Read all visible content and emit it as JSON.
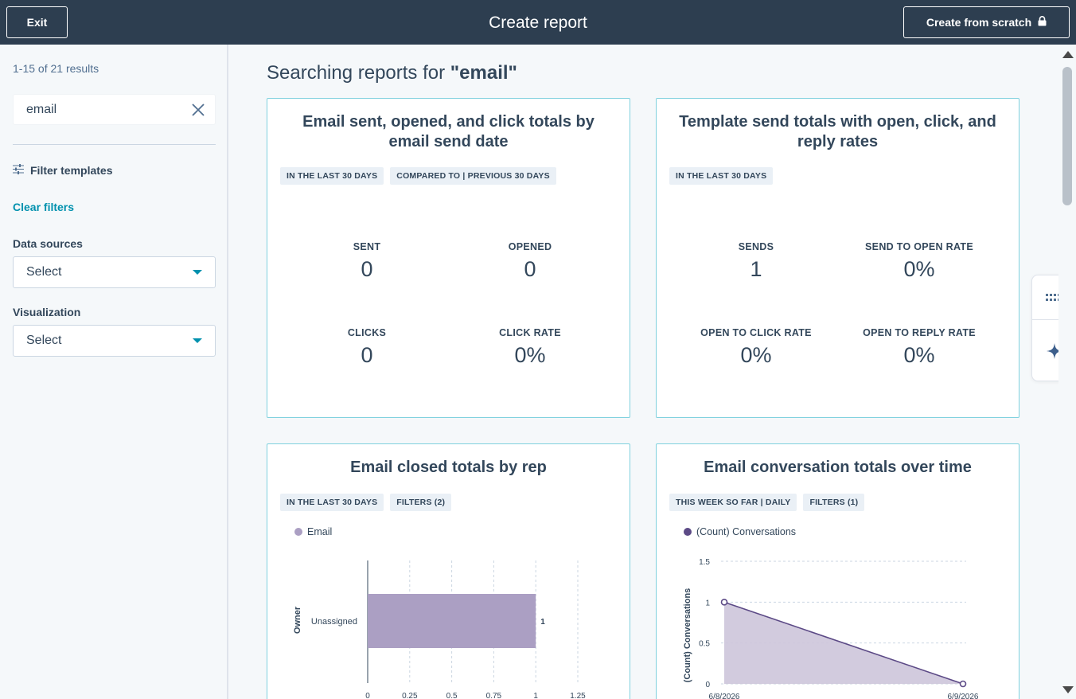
{
  "header": {
    "exit_label": "Exit",
    "title": "Create report",
    "create_scratch_label": "Create from scratch"
  },
  "sidebar": {
    "results_count": "1-15 of 21 results",
    "search_value": "email",
    "filter_templates_label": "Filter templates",
    "clear_filters_label": "Clear filters",
    "data_sources_label": "Data sources",
    "data_sources_value": "Select",
    "visualization_label": "Visualization",
    "visualization_value": "Select"
  },
  "main": {
    "search_heading_prefix": "Searching reports for",
    "search_heading_term": "\"email\"",
    "cards": [
      {
        "title": "Email sent, opened, and click totals by email send date",
        "tags": [
          "IN THE LAST 30 DAYS",
          "COMPARED TO | PREVIOUS 30 DAYS"
        ],
        "kpis": [
          {
            "label": "SENT",
            "value": "0"
          },
          {
            "label": "OPENED",
            "value": "0"
          },
          {
            "label": "CLICKS",
            "value": "0"
          },
          {
            "label": "CLICK RATE",
            "value": "0%"
          }
        ]
      },
      {
        "title": "Template send totals with open, click, and reply rates",
        "tags": [
          "IN THE LAST 30 DAYS"
        ],
        "kpis": [
          {
            "label": "SENDS",
            "value": "1"
          },
          {
            "label": "SEND TO OPEN RATE",
            "value": "0%"
          },
          {
            "label": "OPEN TO CLICK RATE",
            "value": "0%"
          },
          {
            "label": "OPEN TO REPLY RATE",
            "value": "0%"
          }
        ]
      },
      {
        "title": "Email closed totals by rep",
        "tags": [
          "IN THE LAST 30 DAYS",
          "FILTERS (2)"
        ],
        "legend": "Email"
      },
      {
        "title": "Email conversation totals over time",
        "tags": [
          "THIS WEEK SO FAR | DAILY",
          "FILTERS (1)"
        ],
        "legend": "(Count) Conversations"
      }
    ]
  },
  "chart_data": [
    {
      "type": "bar",
      "orientation": "horizontal",
      "categories": [
        "Unassigned"
      ],
      "series": [
        {
          "name": "Email",
          "values": [
            1
          ]
        }
      ],
      "data_labels": [
        "1"
      ],
      "ylabel": "Owner",
      "x_ticks": [
        "0",
        "0.25",
        "0.5",
        "0.75",
        "1",
        "1.25"
      ],
      "xlim": [
        0,
        1.25
      ],
      "color": "#ab9fc3"
    },
    {
      "type": "area",
      "x": [
        "6/8/2026",
        "6/9/2026"
      ],
      "series": [
        {
          "name": "(Count) Conversations",
          "values": [
            1,
            0
          ]
        }
      ],
      "ylabel": "(Count) Conversations",
      "y_ticks": [
        "0",
        "0.5",
        "1",
        "1.5"
      ],
      "ylim": [
        0,
        1.5
      ],
      "line_color": "#5c4a86",
      "fill_color": "#cdc5da"
    }
  ],
  "colors": {
    "header_bg": "#2d3e50",
    "accent": "#0091ae",
    "card_border": "#7fd1de",
    "page_bg": "#f5f8fa"
  },
  "icons": {
    "lock": "lock-icon",
    "clear": "close-icon",
    "filter": "sliders-icon",
    "grid": "grid-dots-icon",
    "sparkle": "sparkle-icon"
  }
}
